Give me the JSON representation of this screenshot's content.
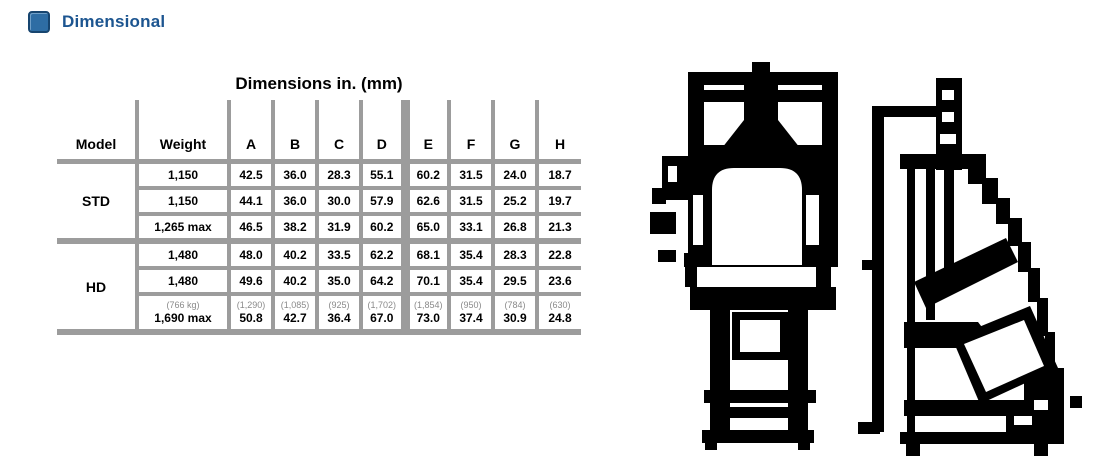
{
  "header": {
    "title": "Dimensional",
    "icon": "blue-square-icon",
    "accent_color": "#1c5590"
  },
  "table": {
    "title": "Dimensions in. (mm)",
    "grid_color": "#9c9c9c",
    "columns": [
      "Model",
      "Weight",
      "A",
      "B",
      "C",
      "D",
      "E",
      "F",
      "G",
      "H"
    ],
    "groups": [
      {
        "label": "STD",
        "rows": [
          {
            "cells": [
              "1,150",
              "42.5",
              "36.0",
              "28.3",
              "55.1",
              "60.2",
              "31.5",
              "24.0",
              "18.7"
            ]
          },
          {
            "cells": [
              "1,150",
              "44.1",
              "36.0",
              "30.0",
              "57.9",
              "62.6",
              "31.5",
              "25.2",
              "19.7"
            ]
          },
          {
            "cells": [
              "1,265 max",
              "46.5",
              "38.2",
              "31.9",
              "60.2",
              "65.0",
              "33.1",
              "26.8",
              "21.3"
            ]
          }
        ]
      },
      {
        "label": "HD",
        "rows": [
          {
            "cells": [
              "1,480",
              "48.0",
              "40.2",
              "33.5",
              "62.2",
              "68.1",
              "35.4",
              "28.3",
              "22.8"
            ]
          },
          {
            "cells": [
              "1,480",
              "49.6",
              "40.2",
              "35.0",
              "64.2",
              "70.1",
              "35.4",
              "29.5",
              "23.6"
            ]
          },
          {
            "notes": [
              "(766 kg)",
              "(1,290)",
              "(1,085)",
              "(925)",
              "(1,702)",
              "(1,854)",
              "(950)",
              "(784)",
              "(630)"
            ],
            "cells": [
              "1,690 max",
              "50.8",
              "42.7",
              "36.4",
              "67.0",
              "73.0",
              "37.4",
              "30.9",
              "24.8"
            ]
          }
        ]
      }
    ]
  },
  "figures": {
    "front_view": "machine-front-view-drawing",
    "side_view": "machine-side-view-drawing"
  }
}
